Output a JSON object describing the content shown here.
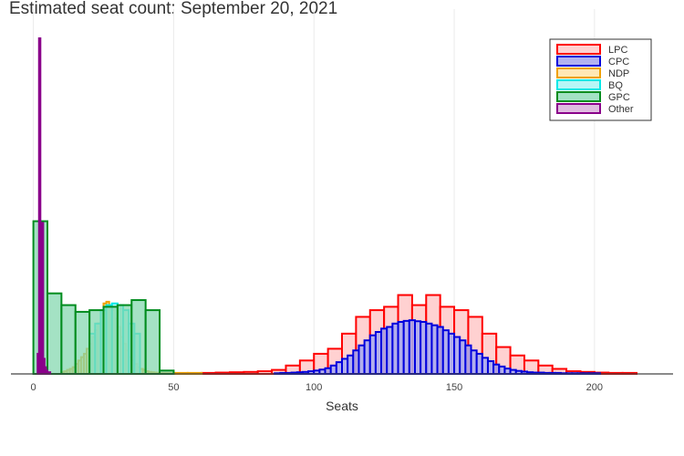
{
  "chart_data": {
    "type": "bar",
    "title": "Estimated seat count: September 20, 2021",
    "xlabel": "Seats",
    "ylabel": "",
    "xlim": [
      -8,
      228
    ],
    "xticks": [
      0,
      50,
      100,
      150,
      200
    ],
    "ylim": [
      0,
      1.0
    ],
    "grid": true,
    "legend_position": "top-right",
    "series": [
      {
        "name": "LPC",
        "color": "#ff0000",
        "fill": "#ffcccc",
        "fill_opacity": 0.9,
        "bins": [
          [
            60,
            65,
            0.003
          ],
          [
            65,
            70,
            0.004
          ],
          [
            70,
            75,
            0.005
          ],
          [
            75,
            80,
            0.006
          ],
          [
            80,
            85,
            0.008
          ],
          [
            85,
            90,
            0.012
          ],
          [
            90,
            95,
            0.025
          ],
          [
            95,
            100,
            0.04
          ],
          [
            100,
            105,
            0.06
          ],
          [
            105,
            110,
            0.075
          ],
          [
            110,
            115,
            0.12
          ],
          [
            115,
            120,
            0.17
          ],
          [
            120,
            125,
            0.19
          ],
          [
            125,
            130,
            0.2
          ],
          [
            130,
            135,
            0.235
          ],
          [
            135,
            140,
            0.205
          ],
          [
            140,
            145,
            0.235
          ],
          [
            145,
            150,
            0.2
          ],
          [
            150,
            155,
            0.19
          ],
          [
            155,
            160,
            0.17
          ],
          [
            160,
            165,
            0.12
          ],
          [
            165,
            170,
            0.08
          ],
          [
            170,
            175,
            0.055
          ],
          [
            175,
            180,
            0.04
          ],
          [
            180,
            185,
            0.025
          ],
          [
            185,
            190,
            0.015
          ],
          [
            190,
            195,
            0.008
          ],
          [
            195,
            200,
            0.006
          ],
          [
            200,
            205,
            0.004
          ],
          [
            205,
            210,
            0.003
          ],
          [
            210,
            215,
            0.003
          ]
        ]
      },
      {
        "name": "CPC",
        "color": "#0000dd",
        "fill": "#aaaaee",
        "fill_opacity": 0.9,
        "bins": [
          [
            86,
            88,
            0.002
          ],
          [
            88,
            90,
            0.003
          ],
          [
            90,
            92,
            0.003
          ],
          [
            92,
            94,
            0.004
          ],
          [
            94,
            96,
            0.005
          ],
          [
            96,
            98,
            0.006
          ],
          [
            98,
            100,
            0.008
          ],
          [
            100,
            102,
            0.01
          ],
          [
            102,
            104,
            0.013
          ],
          [
            104,
            106,
            0.017
          ],
          [
            106,
            108,
            0.025
          ],
          [
            108,
            110,
            0.035
          ],
          [
            110,
            112,
            0.045
          ],
          [
            112,
            114,
            0.055
          ],
          [
            114,
            116,
            0.07
          ],
          [
            116,
            118,
            0.085
          ],
          [
            118,
            120,
            0.1
          ],
          [
            120,
            122,
            0.115
          ],
          [
            122,
            124,
            0.125
          ],
          [
            124,
            126,
            0.135
          ],
          [
            126,
            128,
            0.14
          ],
          [
            128,
            130,
            0.15
          ],
          [
            130,
            132,
            0.155
          ],
          [
            132,
            134,
            0.158
          ],
          [
            134,
            136,
            0.16
          ],
          [
            136,
            138,
            0.157
          ],
          [
            138,
            140,
            0.155
          ],
          [
            140,
            142,
            0.15
          ],
          [
            142,
            144,
            0.145
          ],
          [
            144,
            146,
            0.14
          ],
          [
            146,
            148,
            0.13
          ],
          [
            148,
            150,
            0.12
          ],
          [
            150,
            152,
            0.11
          ],
          [
            152,
            154,
            0.1
          ],
          [
            154,
            156,
            0.085
          ],
          [
            156,
            158,
            0.07
          ],
          [
            158,
            160,
            0.06
          ],
          [
            160,
            162,
            0.048
          ],
          [
            162,
            164,
            0.038
          ],
          [
            164,
            166,
            0.028
          ],
          [
            166,
            168,
            0.022
          ],
          [
            168,
            170,
            0.016
          ],
          [
            170,
            172,
            0.012
          ],
          [
            172,
            174,
            0.009
          ],
          [
            174,
            176,
            0.007
          ],
          [
            176,
            178,
            0.005
          ],
          [
            178,
            180,
            0.004
          ],
          [
            180,
            182,
            0.004
          ],
          [
            182,
            184,
            0.003
          ],
          [
            184,
            186,
            0.003
          ],
          [
            186,
            188,
            0.003
          ],
          [
            188,
            190,
            0.002
          ],
          [
            190,
            192,
            0.002
          ],
          [
            192,
            194,
            0.002
          ],
          [
            194,
            196,
            0.002
          ],
          [
            196,
            198,
            0.002
          ],
          [
            198,
            200,
            0.002
          ],
          [
            200,
            202,
            0.002
          ]
        ]
      },
      {
        "name": "NDP",
        "color": "#f0a000",
        "fill": "#ffe4a8",
        "fill_opacity": 0.85,
        "bins": [
          [
            10,
            11,
            0.005
          ],
          [
            11,
            12,
            0.008
          ],
          [
            12,
            13,
            0.012
          ],
          [
            13,
            14,
            0.015
          ],
          [
            14,
            15,
            0.02
          ],
          [
            15,
            16,
            0.03
          ],
          [
            16,
            17,
            0.04
          ],
          [
            17,
            18,
            0.05
          ],
          [
            18,
            19,
            0.06
          ],
          [
            19,
            20,
            0.075
          ],
          [
            20,
            21,
            0.09
          ],
          [
            21,
            22,
            0.11
          ],
          [
            22,
            23,
            0.13
          ],
          [
            23,
            24,
            0.15
          ],
          [
            24,
            25,
            0.18
          ],
          [
            25,
            26,
            0.21
          ],
          [
            26,
            27,
            0.215
          ],
          [
            27,
            28,
            0.2
          ],
          [
            28,
            29,
            0.19
          ],
          [
            29,
            30,
            0.165
          ],
          [
            30,
            31,
            0.14
          ],
          [
            31,
            32,
            0.11
          ],
          [
            32,
            33,
            0.09
          ],
          [
            33,
            34,
            0.07
          ],
          [
            34,
            35,
            0.05
          ],
          [
            35,
            36,
            0.04
          ],
          [
            36,
            37,
            0.03
          ],
          [
            37,
            38,
            0.02
          ],
          [
            38,
            39,
            0.015
          ],
          [
            39,
            40,
            0.012
          ],
          [
            40,
            41,
            0.008
          ],
          [
            41,
            42,
            0.006
          ],
          [
            42,
            43,
            0.005
          ],
          [
            43,
            44,
            0.004
          ],
          [
            44,
            45,
            0.003
          ],
          [
            45,
            47,
            0.003
          ],
          [
            47,
            50,
            0.003
          ],
          [
            50,
            55,
            0.003
          ],
          [
            55,
            60,
            0.003
          ]
        ]
      },
      {
        "name": "BQ",
        "color": "#00e8e8",
        "fill": "#aaf4f4",
        "fill_opacity": 0.85,
        "bins": [
          [
            20,
            22,
            0.12
          ],
          [
            22,
            24,
            0.15
          ],
          [
            24,
            26,
            0.19
          ],
          [
            26,
            28,
            0.205
          ],
          [
            28,
            30,
            0.21
          ],
          [
            30,
            32,
            0.205
          ],
          [
            32,
            34,
            0.19
          ],
          [
            34,
            36,
            0.15
          ],
          [
            36,
            38,
            0.12
          ]
        ]
      },
      {
        "name": "GPC",
        "color": "#008c1e",
        "fill": "#86d8b0",
        "fill_opacity": 0.75,
        "bins": [
          [
            0,
            5,
            0.455
          ],
          [
            5,
            10,
            0.24
          ],
          [
            10,
            15,
            0.205
          ],
          [
            15,
            20,
            0.185
          ],
          [
            20,
            25,
            0.19
          ],
          [
            25,
            30,
            0.2
          ],
          [
            30,
            35,
            0.205
          ],
          [
            35,
            40,
            0.22
          ],
          [
            40,
            45,
            0.19
          ],
          [
            45,
            50,
            0.01
          ]
        ]
      },
      {
        "name": "Other",
        "color": "#8a008a",
        "fill": "#dab0da",
        "fill_opacity": 0.85,
        "bins": [
          [
            1.5,
            2,
            0.06
          ],
          [
            2,
            2.5,
            1.0
          ],
          [
            2.5,
            3,
            0.09
          ],
          [
            3,
            3.5,
            0.45
          ],
          [
            3.5,
            4,
            0.045
          ],
          [
            4,
            4.5,
            0.02
          ],
          [
            4.5,
            5,
            0.01
          ],
          [
            5,
            6,
            0.005
          ]
        ]
      }
    ]
  }
}
